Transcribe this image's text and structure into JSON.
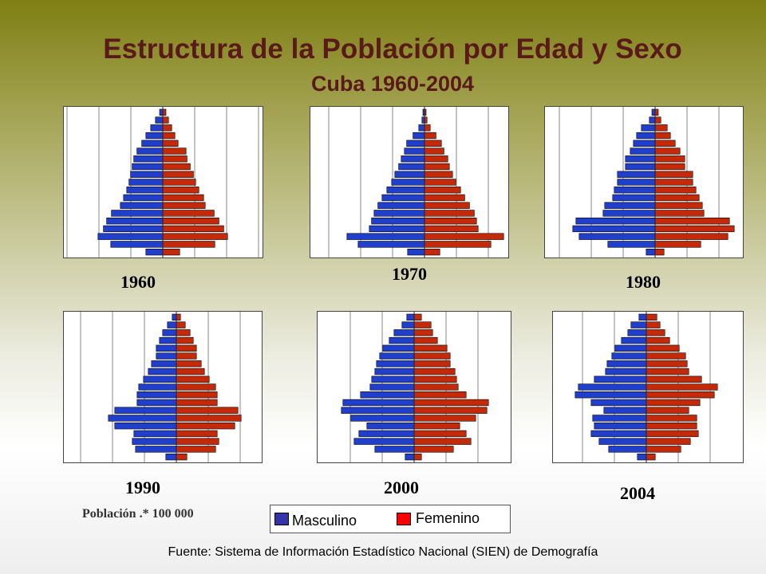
{
  "header": {
    "title": "Estructura de la Población por Edad y Sexo",
    "subtitle": "Cuba 1960-2004"
  },
  "colors": {
    "male": "#1f3fcc",
    "female": "#c42a0a",
    "grid": "#888888"
  },
  "units_note": "Población .* 100 000",
  "legend": {
    "male_label": "Masculino",
    "female_label": "Femenino",
    "male_swatch": "#3333aa",
    "female_swatch": "#ff0000"
  },
  "source": "Fuente: Sistema de Información Estadístico Nacional (SIEN) de Demografía",
  "chart_data": [
    {
      "type": "bar",
      "year_label": "1960",
      "orientation": "population-pyramid",
      "age_groups_bottom_to_top": 19,
      "series": [
        {
          "name": "Masculino",
          "values": [
            0.53,
            1.63,
            2.03,
            1.86,
            1.76,
            1.61,
            1.33,
            1.23,
            1.13,
            1.06,
            1.01,
            0.96,
            0.91,
            0.81,
            0.66,
            0.53,
            0.38,
            0.23,
            0.1
          ]
        },
        {
          "name": "Femenino",
          "values": [
            0.53,
            1.63,
            2.03,
            1.91,
            1.76,
            1.61,
            1.33,
            1.28,
            1.13,
            1.03,
            0.96,
            0.86,
            0.76,
            0.73,
            0.48,
            0.38,
            0.28,
            0.18,
            0.1
          ]
        }
      ]
    },
    {
      "type": "bar",
      "year_label": "1970",
      "orientation": "population-pyramid",
      "age_groups_bottom_to_top": 19,
      "series": [
        {
          "name": "Masculino",
          "values": [
            0.53,
            2.08,
            2.43,
            1.73,
            1.66,
            1.58,
            1.46,
            1.33,
            1.18,
            1.03,
            0.93,
            0.81,
            0.73,
            0.63,
            0.56,
            0.36,
            0.18,
            0.08,
            0.05
          ]
        },
        {
          "name": "Femenino",
          "values": [
            0.48,
            2.08,
            2.48,
            1.68,
            1.63,
            1.56,
            1.41,
            1.26,
            1.13,
            0.98,
            0.88,
            0.78,
            0.73,
            0.61,
            0.53,
            0.36,
            0.18,
            0.08,
            0.05
          ]
        }
      ]
    },
    {
      "type": "bar",
      "year_label": "1980",
      "orientation": "population-pyramid",
      "age_groups_bottom_to_top": 19,
      "series": [
        {
          "name": "Masculino",
          "values": [
            0.28,
            1.48,
            2.38,
            2.58,
            2.48,
            1.63,
            1.58,
            1.33,
            1.28,
            1.18,
            1.18,
            0.93,
            0.93,
            0.78,
            0.68,
            0.58,
            0.43,
            0.18,
            0.1
          ]
        },
        {
          "name": "Femenino",
          "values": [
            0.28,
            1.43,
            2.28,
            2.48,
            2.33,
            1.53,
            1.48,
            1.38,
            1.28,
            1.18,
            1.18,
            0.93,
            0.93,
            0.78,
            0.63,
            0.48,
            0.38,
            0.18,
            0.1
          ]
        }
      ]
    },
    {
      "type": "bar",
      "year_label": "1990",
      "orientation": "population-pyramid",
      "age_groups_bottom_to_top": 19,
      "series": [
        {
          "name": "Masculino",
          "values": [
            0.33,
            1.28,
            1.38,
            1.33,
            1.93,
            2.13,
            1.93,
            1.23,
            1.23,
            1.18,
            1.03,
            0.88,
            0.78,
            0.63,
            0.63,
            0.53,
            0.43,
            0.28,
            0.13
          ]
        },
        {
          "name": "Femenino",
          "values": [
            0.33,
            1.23,
            1.33,
            1.28,
            1.83,
            2.03,
            1.93,
            1.28,
            1.28,
            1.23,
            1.03,
            0.88,
            0.78,
            0.63,
            0.63,
            0.53,
            0.43,
            0.28,
            0.13
          ]
        }
      ]
    },
    {
      "type": "bar",
      "year_label": "2000",
      "orientation": "population-pyramid",
      "age_groups_bottom_to_top": 19,
      "series": [
        {
          "name": "Masculino",
          "values": [
            0.28,
            1.23,
            1.88,
            1.73,
            1.48,
            1.98,
            2.28,
            2.23,
            1.68,
            1.38,
            1.33,
            1.23,
            1.18,
            1.08,
            0.98,
            0.78,
            0.63,
            0.38,
            0.23
          ]
        },
        {
          "name": "Femenino",
          "values": [
            0.23,
            1.23,
            1.78,
            1.63,
            1.43,
            1.93,
            2.28,
            2.33,
            1.63,
            1.38,
            1.33,
            1.28,
            1.13,
            1.13,
            1.03,
            0.73,
            0.58,
            0.53,
            0.23
          ]
        }
      ]
    },
    {
      "type": "bar",
      "year_label": "2004",
      "orientation": "population-pyramid",
      "age_groups_bottom_to_top": 19,
      "series": [
        {
          "name": "Masculino",
          "values": [
            0.28,
            1.18,
            1.48,
            1.73,
            1.63,
            1.68,
            1.33,
            1.73,
            2.23,
            2.13,
            1.63,
            1.28,
            1.23,
            1.08,
            0.98,
            0.78,
            0.58,
            0.48,
            0.23
          ]
        },
        {
          "name": "Femenino",
          "values": [
            0.28,
            1.08,
            1.38,
            1.63,
            1.58,
            1.58,
            1.33,
            1.68,
            2.13,
            2.23,
            1.73,
            1.33,
            1.28,
            1.23,
            1.03,
            0.73,
            0.58,
            0.43,
            0.33
          ]
        }
      ]
    }
  ]
}
